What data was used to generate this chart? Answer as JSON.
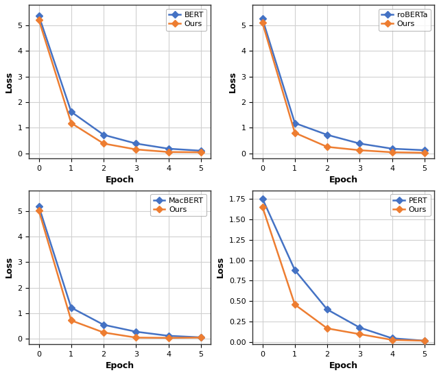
{
  "subplots": [
    {
      "legend_label": "BERT",
      "epochs": [
        0,
        1,
        2,
        3,
        4,
        5
      ],
      "base_loss": [
        5.38,
        1.62,
        0.72,
        0.38,
        0.18,
        0.1
      ],
      "ours_loss": [
        5.22,
        1.18,
        0.38,
        0.15,
        0.05,
        0.04
      ],
      "ylim": [
        -0.2,
        5.8
      ],
      "yticks": [
        0,
        1,
        2,
        3,
        4,
        5
      ]
    },
    {
      "legend_label": "roBERTa",
      "epochs": [
        0,
        1,
        2,
        3,
        4,
        5
      ],
      "base_loss": [
        5.25,
        1.18,
        0.72,
        0.38,
        0.18,
        0.12
      ],
      "ours_loss": [
        5.1,
        0.8,
        0.25,
        0.12,
        0.04,
        0.02
      ],
      "ylim": [
        -0.2,
        5.8
      ],
      "yticks": [
        0,
        1,
        2,
        3,
        4,
        5
      ]
    },
    {
      "legend_label": "MacBERT",
      "epochs": [
        0,
        1,
        2,
        3,
        4,
        5
      ],
      "base_loss": [
        5.18,
        1.22,
        0.55,
        0.28,
        0.12,
        0.06
      ],
      "ours_loss": [
        5.02,
        0.72,
        0.25,
        0.05,
        0.04,
        0.05
      ],
      "ylim": [
        -0.2,
        5.8
      ],
      "yticks": [
        0,
        1,
        2,
        3,
        4,
        5
      ]
    },
    {
      "legend_label": "PERT",
      "epochs": [
        0,
        1,
        2,
        3,
        4,
        5
      ],
      "base_loss": [
        1.75,
        0.88,
        0.4,
        0.18,
        0.05,
        0.02
      ],
      "ours_loss": [
        1.65,
        0.46,
        0.17,
        0.1,
        0.03,
        0.02
      ],
      "ylim": [
        -0.02,
        1.85
      ],
      "yticks": [
        0.0,
        0.25,
        0.5,
        0.75,
        1.0,
        1.25,
        1.5,
        1.75
      ]
    }
  ],
  "base_color": "#4472c4",
  "ours_color": "#ed7d31",
  "marker": "D",
  "linewidth": 1.8,
  "markersize": 5,
  "xlabel": "Epoch",
  "ylabel": "Loss",
  "grid_color": "#d0d0d0",
  "background_color": "#ffffff"
}
